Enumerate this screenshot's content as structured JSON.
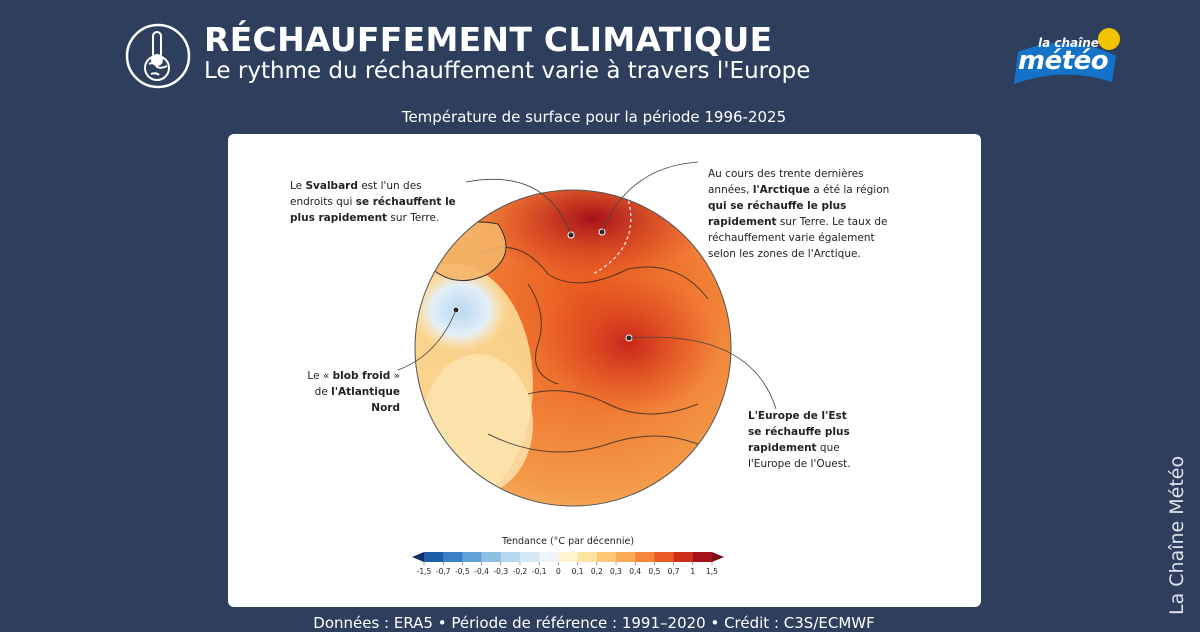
{
  "header": {
    "title": "RÉCHAUFFEMENT CLIMATIQUE",
    "subtitle": "Le rythme du réchauffement varie à travers l'Europe",
    "logo_top": "la chaîne",
    "logo_main": "météo"
  },
  "map": {
    "title": "Température de surface pour la période 1996-2025",
    "annotations": [
      {
        "segments": [
          {
            "text": "Le ",
            "bold": false
          },
          {
            "text": "Svalbard",
            "bold": true
          },
          {
            "text": " est l'un des endroits qui ",
            "bold": false
          },
          {
            "text": "se réchauffent le plus rapidement",
            "bold": true
          },
          {
            "text": " sur Terre.",
            "bold": false
          }
        ]
      },
      {
        "segments": [
          {
            "text": "Au cours des trente dernières années, ",
            "bold": false
          },
          {
            "text": "l'Arctique",
            "bold": true
          },
          {
            "text": " a été la région ",
            "bold": false
          },
          {
            "text": "qui se réchauffe le plus rapidement",
            "bold": true
          },
          {
            "text": " sur Terre. Le taux de réchauffement varie également selon les zones de l'Arctique.",
            "bold": false
          }
        ]
      },
      {
        "segments": [
          {
            "text": "Le « ",
            "bold": false
          },
          {
            "text": "blob froid",
            "bold": true
          },
          {
            "text": " » de ",
            "bold": false
          },
          {
            "text": "l'Atlantique Nord",
            "bold": true
          }
        ]
      },
      {
        "segments": [
          {
            "text": "L'Europe de l'Est se réchauffe plus rapidement",
            "bold": true
          },
          {
            "text": " que l'Europe de l'Ouest.",
            "bold": false
          }
        ]
      }
    ],
    "legend": {
      "title": "Tendance (°C par décennie)",
      "ticks": [
        "-1,5",
        "-0,7",
        "-0,5",
        "-0,4",
        "-0,3",
        "-0,2",
        "-0,1",
        "0",
        "0,1",
        "0,2",
        "0,3",
        "0,4",
        "0,5",
        "0,7",
        "1",
        "1,5"
      ],
      "colors": [
        "#1f5fa8",
        "#3a80c2",
        "#62a3d6",
        "#8dc0e3",
        "#b5d8ee",
        "#d5e9f5",
        "#eef5fa",
        "#fff4cf",
        "#fde3a0",
        "#fcc977",
        "#fbaa55",
        "#f6853a",
        "#e85a27",
        "#cf301c",
        "#a8121a"
      ]
    }
  },
  "footer": "Données : ERA5  •  Période de référence : 1991–2020  •  Crédit : C3S/ECMWF",
  "watermark": "La Chaîne Météo"
}
